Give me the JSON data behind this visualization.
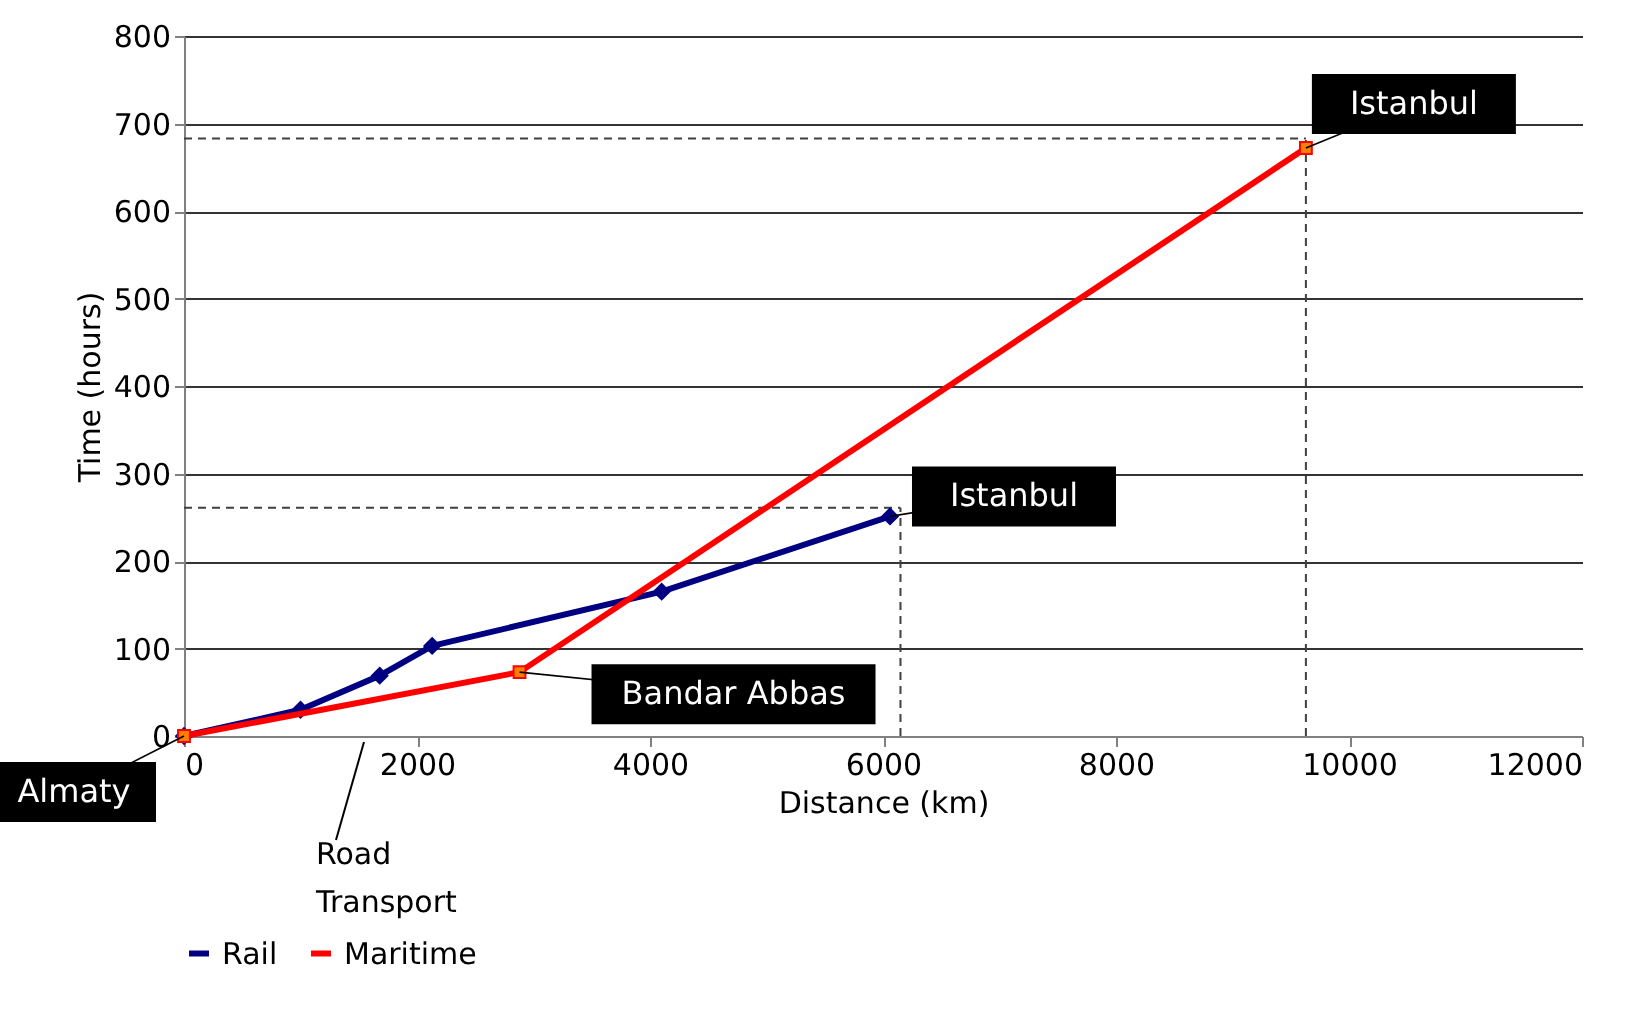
{
  "chart_data": {
    "type": "line",
    "xlabel": "Distance (km)",
    "ylabel": "Time (hours)",
    "xlim": [
      0,
      12000
    ],
    "xticks": [
      0,
      2000,
      4000,
      6000,
      8000,
      10000,
      12000
    ],
    "ylim": [
      0,
      800
    ],
    "yticks": [
      0,
      100,
      200,
      300,
      400,
      500,
      600,
      700,
      800
    ],
    "grid": "y",
    "legend": "bottom",
    "line_style": "solid",
    "series": [
      {
        "name": "Rail",
        "color": "#000080",
        "marker": "diamond",
        "x": [
          0,
          1000,
          1680,
          2130,
          4100,
          6060
        ],
        "values": [
          0,
          30,
          69,
          103,
          165,
          251
        ]
      },
      {
        "name": "Maritime",
        "color": "#ff0000",
        "marker": "square",
        "x": [
          0,
          2880,
          9630
        ],
        "values": [
          0,
          73,
          672
        ]
      }
    ],
    "ref_lines": [
      {
        "axis": "x",
        "value": 6150,
        "color": "#404040",
        "line_style": "dashed"
      },
      {
        "axis": "y",
        "value": 261,
        "color": "#404040",
        "line_style": "dashed"
      },
      {
        "axis": "x",
        "value": 9630,
        "color": "#404040",
        "line_style": "dashed"
      },
      {
        "axis": "y",
        "value": 683,
        "color": "#404040",
        "line_style": "dashed"
      }
    ],
    "annotations": [
      {
        "text": "Almaty",
        "x": 0,
        "y": 0
      },
      {
        "text": "Bandar Abbas",
        "x": 2880,
        "y": 73
      },
      {
        "text": "Istanbul",
        "x": 6060,
        "y": 251
      },
      {
        "text": "Istanbul",
        "x": 9630,
        "y": 672
      },
      "Road Transport"
    ]
  }
}
